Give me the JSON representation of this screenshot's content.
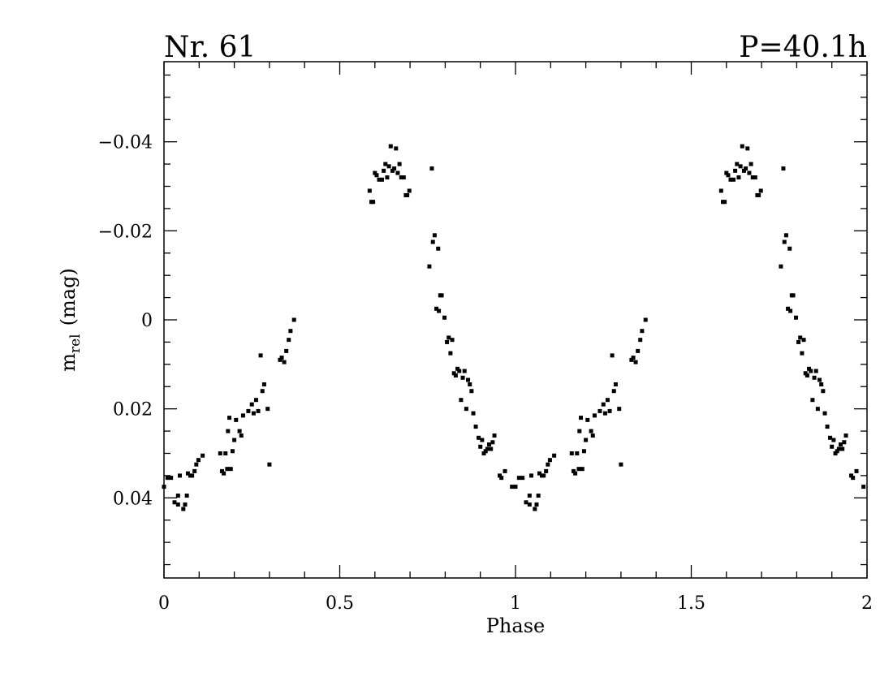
{
  "chart_data": {
    "type": "scatter",
    "title_left": "Nr. 61",
    "title_right": "P=40.1h",
    "xlabel": "Phase",
    "ylabel_main": "m",
    "ylabel_sub": "rel",
    "ylabel_unit": "(mag)",
    "xlim": [
      0,
      2
    ],
    "ylim": [
      0.058,
      -0.058
    ],
    "y_inverted": true,
    "grid": false,
    "marker_color": "#000000",
    "xticks": [
      {
        "value": 0,
        "label": "0"
      },
      {
        "value": 0.5,
        "label": "0.5"
      },
      {
        "value": 1,
        "label": "1"
      },
      {
        "value": 1.5,
        "label": "1.5"
      },
      {
        "value": 2,
        "label": "2"
      }
    ],
    "yticks": [
      {
        "value": -0.04,
        "label": "−0.04"
      },
      {
        "value": -0.02,
        "label": "−0.02"
      },
      {
        "value": 0,
        "label": "0"
      },
      {
        "value": 0.02,
        "label": "0.02"
      },
      {
        "value": 0.04,
        "label": "0.04"
      }
    ],
    "points": [
      [
        0.0,
        0.0375
      ],
      [
        0.01,
        0.0355
      ],
      [
        0.02,
        0.0355
      ],
      [
        0.03,
        0.041
      ],
      [
        0.04,
        0.0395
      ],
      [
        0.04,
        0.0415
      ],
      [
        0.045,
        0.035
      ],
      [
        0.055,
        0.0425
      ],
      [
        0.06,
        0.0415
      ],
      [
        0.065,
        0.0395
      ],
      [
        0.068,
        0.0345
      ],
      [
        0.075,
        0.035
      ],
      [
        0.08,
        0.035
      ],
      [
        0.087,
        0.034
      ],
      [
        0.092,
        0.0325
      ],
      [
        0.098,
        0.0315
      ],
      [
        0.11,
        0.0305
      ],
      [
        0.16,
        0.03
      ],
      [
        0.165,
        0.034
      ],
      [
        0.17,
        0.0345
      ],
      [
        0.175,
        0.03
      ],
      [
        0.18,
        0.0335
      ],
      [
        0.182,
        0.025
      ],
      [
        0.186,
        0.022
      ],
      [
        0.19,
        0.0335
      ],
      [
        0.195,
        0.0295
      ],
      [
        0.2,
        0.027
      ],
      [
        0.205,
        0.0225
      ],
      [
        0.215,
        0.025
      ],
      [
        0.22,
        0.026
      ],
      [
        0.225,
        0.0215
      ],
      [
        0.24,
        0.0205
      ],
      [
        0.25,
        0.019
      ],
      [
        0.255,
        0.021
      ],
      [
        0.262,
        0.018
      ],
      [
        0.268,
        0.0205
      ],
      [
        0.275,
        0.008
      ],
      [
        0.28,
        0.016
      ],
      [
        0.285,
        0.0145
      ],
      [
        0.295,
        0.02
      ],
      [
        0.3,
        0.0325
      ],
      [
        0.33,
        0.009
      ],
      [
        0.335,
        0.0085
      ],
      [
        0.342,
        0.0095
      ],
      [
        0.348,
        0.007
      ],
      [
        0.355,
        0.0045
      ],
      [
        0.36,
        0.0025
      ],
      [
        0.37,
        0.0
      ],
      [
        0.585,
        -0.029
      ],
      [
        0.59,
        -0.0265
      ],
      [
        0.595,
        -0.0265
      ],
      [
        0.6,
        -0.033
      ],
      [
        0.605,
        -0.0325
      ],
      [
        0.612,
        -0.0315
      ],
      [
        0.62,
        -0.0315
      ],
      [
        0.625,
        -0.0335
      ],
      [
        0.63,
        -0.035
      ],
      [
        0.635,
        -0.032
      ],
      [
        0.64,
        -0.0345
      ],
      [
        0.645,
        -0.039
      ],
      [
        0.65,
        -0.0335
      ],
      [
        0.655,
        -0.034
      ],
      [
        0.66,
        -0.0385
      ],
      [
        0.665,
        -0.033
      ],
      [
        0.67,
        -0.035
      ],
      [
        0.675,
        -0.032
      ],
      [
        0.682,
        -0.032
      ],
      [
        0.688,
        -0.028
      ],
      [
        0.692,
        -0.028
      ],
      [
        0.698,
        -0.029
      ],
      [
        0.755,
        -0.012
      ],
      [
        0.762,
        -0.034
      ],
      [
        0.765,
        -0.0175
      ],
      [
        0.77,
        -0.019
      ],
      [
        0.775,
        -0.0025
      ],
      [
        0.78,
        -0.016
      ],
      [
        0.782,
        -0.002
      ],
      [
        0.786,
        -0.0055
      ],
      [
        0.79,
        -0.0055
      ],
      [
        0.798,
        -0.0005
      ],
      [
        0.805,
        0.005
      ],
      [
        0.81,
        0.004
      ],
      [
        0.815,
        0.0075
      ],
      [
        0.82,
        0.0045
      ],
      [
        0.825,
        0.012
      ],
      [
        0.83,
        0.0125
      ],
      [
        0.835,
        0.011
      ],
      [
        0.84,
        0.0115
      ],
      [
        0.845,
        0.018
      ],
      [
        0.85,
        0.013
      ],
      [
        0.855,
        0.0115
      ],
      [
        0.86,
        0.02
      ],
      [
        0.865,
        0.0135
      ],
      [
        0.87,
        0.0145
      ],
      [
        0.875,
        0.016
      ],
      [
        0.88,
        0.021
      ],
      [
        0.887,
        0.024
      ],
      [
        0.895,
        0.0265
      ],
      [
        0.9,
        0.0285
      ],
      [
        0.905,
        0.027
      ],
      [
        0.91,
        0.03
      ],
      [
        0.915,
        0.0295
      ],
      [
        0.92,
        0.029
      ],
      [
        0.925,
        0.028
      ],
      [
        0.93,
        0.029
      ],
      [
        0.935,
        0.0275
      ],
      [
        0.94,
        0.026
      ],
      [
        0.955,
        0.035
      ],
      [
        0.96,
        0.0355
      ],
      [
        0.97,
        0.034
      ],
      [
        0.99,
        0.0375
      ]
    ]
  }
}
